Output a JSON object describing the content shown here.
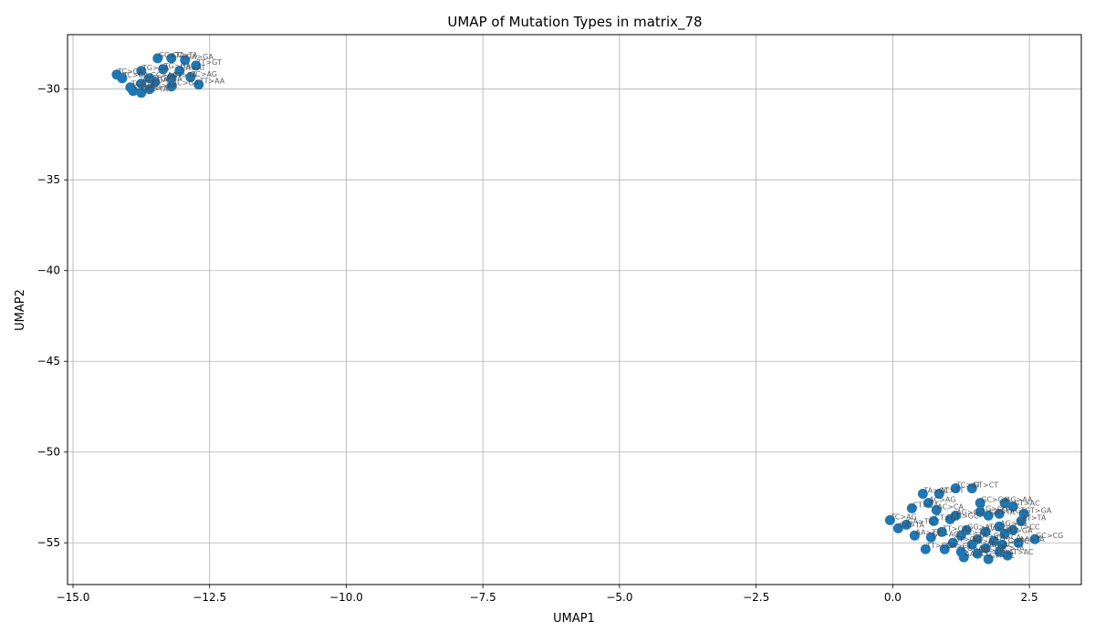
{
  "chart_data": {
    "type": "scatter",
    "title": "UMAP of Mutation Types in matrix_78",
    "xlabel": "UMAP1",
    "ylabel": "UMAP2",
    "xlim": [
      -15.1,
      3.45
    ],
    "ylim": [
      -57.3,
      -27.0
    ],
    "xticks": [
      -15.0,
      -12.5,
      -10.0,
      -7.5,
      -5.0,
      -2.5,
      0.0,
      2.5
    ],
    "xtick_labels": [
      "−15.0",
      "−12.5",
      "−10.0",
      "−7.5",
      "−5.0",
      "−2.5",
      "0.0",
      "2.5"
    ],
    "yticks": [
      -30,
      -35,
      -40,
      -45,
      -50,
      -55
    ],
    "ytick_labels": [
      "−30",
      "−35",
      "−40",
      "−45",
      "−50",
      "−55"
    ],
    "grid": true,
    "marker_color": "#1f77b4",
    "points": [
      {
        "x": -13.45,
        "y": -28.3,
        "label": "GC>TA"
      },
      {
        "x": -13.2,
        "y": -28.3,
        "label": "CC>TA"
      },
      {
        "x": -12.95,
        "y": -28.4,
        "label": "GA>GA"
      },
      {
        "x": -12.75,
        "y": -28.7,
        "label": "TT>GT"
      },
      {
        "x": -13.35,
        "y": -28.9,
        "label": "TG>GA"
      },
      {
        "x": -13.05,
        "y": -29.0,
        "label": "CA>AT"
      },
      {
        "x": -13.75,
        "y": -29.0,
        "label": "TG>GA"
      },
      {
        "x": -12.85,
        "y": -29.35,
        "label": "TC>AG"
      },
      {
        "x": -14.2,
        "y": -29.2,
        "label": "TC>CA"
      },
      {
        "x": -14.1,
        "y": -29.4,
        "label": "TC>CA"
      },
      {
        "x": -13.6,
        "y": -29.4,
        "label": "GC>AA"
      },
      {
        "x": -13.2,
        "y": -29.4,
        "label": "CT>TA"
      },
      {
        "x": -13.5,
        "y": -29.6,
        "label": "TG>CA"
      },
      {
        "x": -13.75,
        "y": -29.7,
        "label": "AT>GA"
      },
      {
        "x": -12.7,
        "y": -29.75,
        "label": "TT>AA"
      },
      {
        "x": -13.2,
        "y": -29.85,
        "label": "AC>GA"
      },
      {
        "x": -13.95,
        "y": -29.9,
        "label": "TC>TT"
      },
      {
        "x": -13.6,
        "y": -30.0,
        "label": "GC>AA"
      },
      {
        "x": -13.9,
        "y": -30.1,
        "label": "CT>GG"
      },
      {
        "x": -13.75,
        "y": -30.2,
        "label": "GC>TA"
      },
      {
        "x": 1.15,
        "y": -52.0,
        "label": "TC>AT"
      },
      {
        "x": 1.45,
        "y": -52.0,
        "label": "GT>CT"
      },
      {
        "x": 0.55,
        "y": -52.3,
        "label": "TA>CC"
      },
      {
        "x": 0.85,
        "y": -52.3,
        "label": "AT>TT"
      },
      {
        "x": 0.65,
        "y": -52.8,
        "label": "AC>AG"
      },
      {
        "x": 1.6,
        "y": -52.8,
        "label": "GC>CA"
      },
      {
        "x": 2.05,
        "y": -52.8,
        "label": "AG>AA"
      },
      {
        "x": 0.35,
        "y": -53.1,
        "label": "CT>CA"
      },
      {
        "x": 0.8,
        "y": -53.2,
        "label": "AC>CA"
      },
      {
        "x": 2.2,
        "y": -53.0,
        "label": "GT>AC"
      },
      {
        "x": 1.6,
        "y": -53.3,
        "label": "TG>CG"
      },
      {
        "x": 1.95,
        "y": -53.4,
        "label": "TT>GT"
      },
      {
        "x": 2.4,
        "y": -53.4,
        "label": "GT>GA"
      },
      {
        "x": 1.15,
        "y": -53.5,
        "label": "AG>GG"
      },
      {
        "x": 1.75,
        "y": -53.5,
        "label": "GA>TA"
      },
      {
        "x": -0.05,
        "y": -53.75,
        "label": "TC>AG"
      },
      {
        "x": 0.75,
        "y": -53.8,
        "label": "CT>GT"
      },
      {
        "x": 1.05,
        "y": -53.7,
        "label": "CG>GC"
      },
      {
        "x": 2.35,
        "y": -53.8,
        "label": "AT>TA"
      },
      {
        "x": 0.25,
        "y": -54.0,
        "label": "GA>TG"
      },
      {
        "x": 0.1,
        "y": -54.2,
        "label": "CA>TA"
      },
      {
        "x": 1.95,
        "y": -54.1,
        "label": "AG>TG"
      },
      {
        "x": 2.2,
        "y": -54.3,
        "label": "CT>CC"
      },
      {
        "x": 0.9,
        "y": -54.4,
        "label": "TT>CA"
      },
      {
        "x": 1.35,
        "y": -54.3,
        "label": "GG>AT"
      },
      {
        "x": 1.7,
        "y": -54.4,
        "label": "CA>GT"
      },
      {
        "x": 2.05,
        "y": -54.5,
        "label": "TG>GA"
      },
      {
        "x": 0.4,
        "y": -54.6,
        "label": "AA>TT"
      },
      {
        "x": 0.7,
        "y": -54.7,
        "label": "GC>AC"
      },
      {
        "x": 1.25,
        "y": -54.6,
        "label": "CC>TT"
      },
      {
        "x": 1.55,
        "y": -54.8,
        "label": "TA>GG"
      },
      {
        "x": 2.6,
        "y": -54.8,
        "label": "GC>CG"
      },
      {
        "x": 1.85,
        "y": -54.9,
        "label": "CA>CA"
      },
      {
        "x": 2.3,
        "y": -55.0,
        "label": "AA>TA"
      },
      {
        "x": 1.1,
        "y": -55.0,
        "label": "GT>GC"
      },
      {
        "x": 1.45,
        "y": -55.1,
        "label": "TA>AC"
      },
      {
        "x": 2.0,
        "y": -55.1,
        "label": "CG>TC"
      },
      {
        "x": 1.7,
        "y": -55.3,
        "label": "AG>AC"
      },
      {
        "x": 0.6,
        "y": -55.35,
        "label": "TT>CG"
      },
      {
        "x": 0.95,
        "y": -55.35,
        "label": "GA>CT"
      },
      {
        "x": 1.25,
        "y": -55.5,
        "label": "CC>AG"
      },
      {
        "x": 1.95,
        "y": -55.5,
        "label": "TC>TA"
      },
      {
        "x": 2.1,
        "y": -55.7,
        "label": "AT>AC"
      },
      {
        "x": 1.55,
        "y": -55.6,
        "label": "CG>TG"
      },
      {
        "x": 1.3,
        "y": -55.8,
        "label": "AA>CC"
      },
      {
        "x": 1.75,
        "y": -55.9,
        "label": "GT>TC"
      }
    ]
  }
}
